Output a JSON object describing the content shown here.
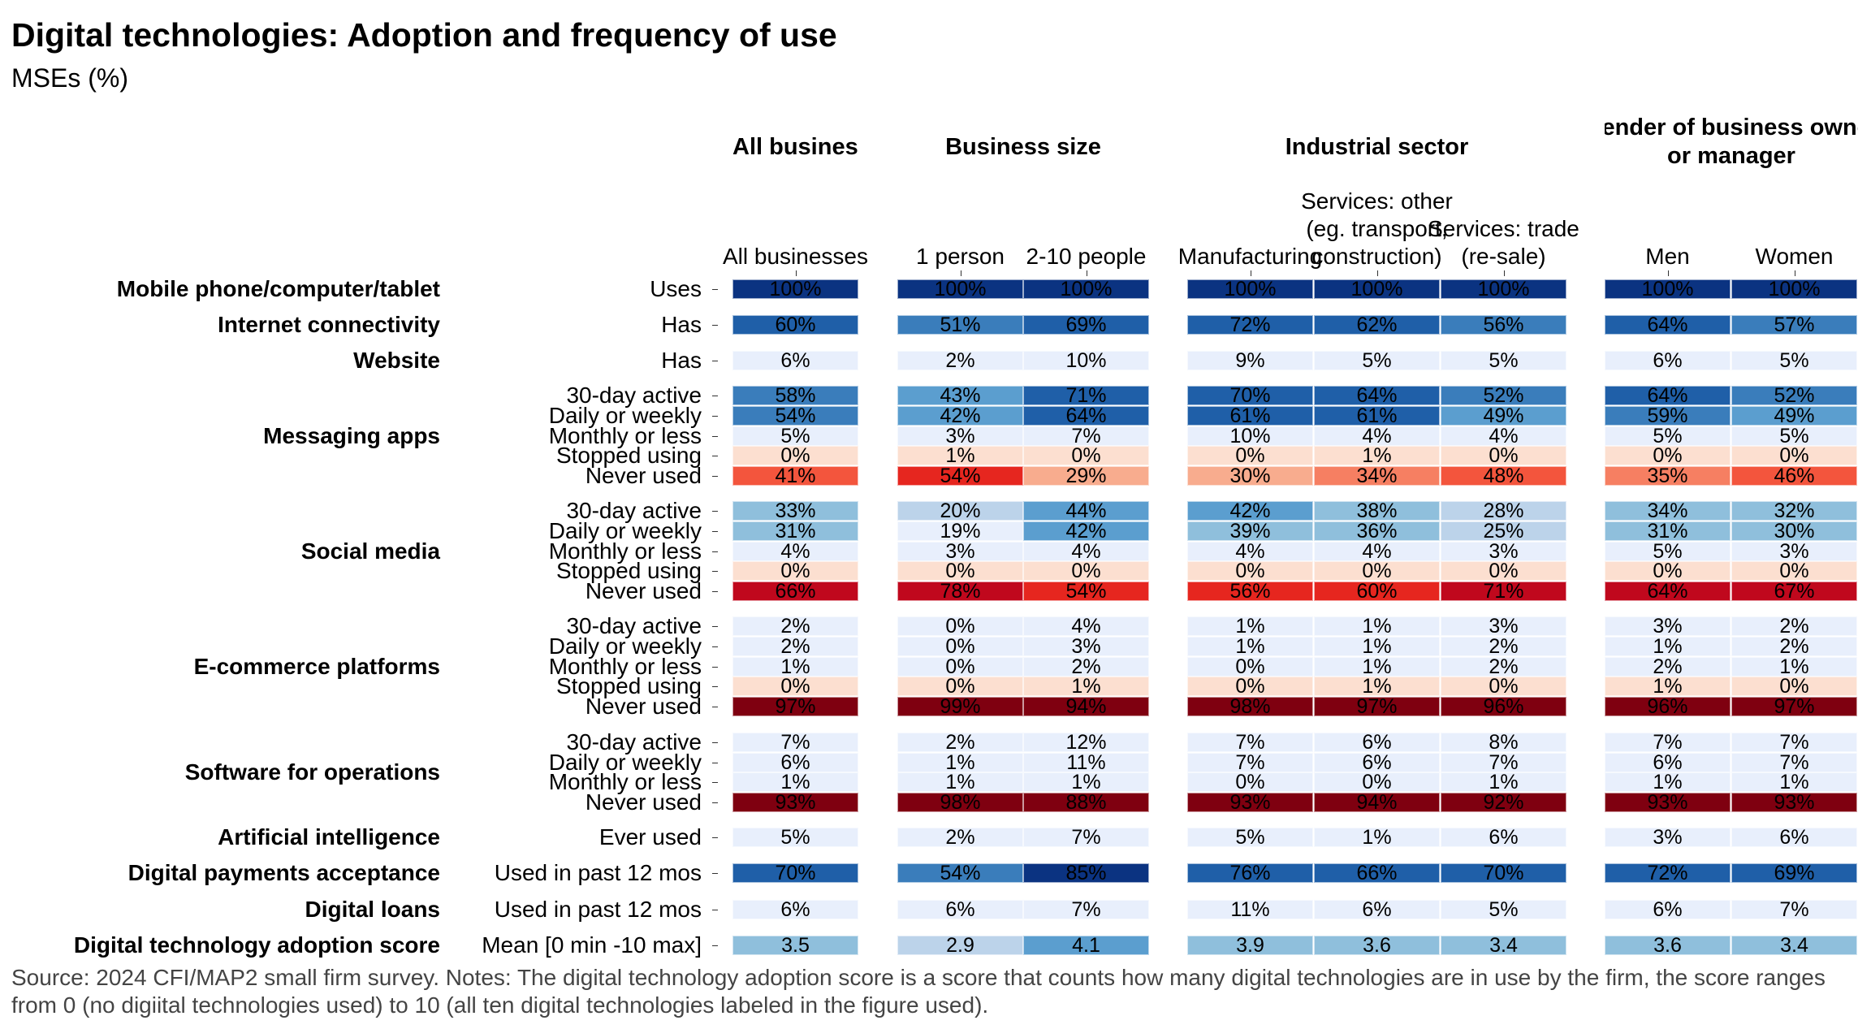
{
  "chart_data": {
    "type": "heatmap",
    "title": "Digital technologies: Adoption and frequency of use",
    "subtitle": "MSEs (%)",
    "panels": [
      {
        "title": "All businesses",
        "columns": [
          "All businesses"
        ]
      },
      {
        "title": "Business size",
        "columns": [
          "1 person",
          "2-10 people"
        ]
      },
      {
        "title": "Industrial sector",
        "columns": [
          "Manufacturing",
          "Services: other\n(eg. transport,\nconstruction)",
          "Services: trade\n(re-sale)"
        ]
      },
      {
        "title": "Gender of business owner or manager",
        "columns": [
          "Men",
          "Women"
        ]
      }
    ],
    "unit": "%",
    "groups": [
      {
        "label": "Mobile phone/computer/tablet",
        "rows": [
          {
            "label": "Uses",
            "values": [
              100,
              100,
              100,
              100,
              100,
              100,
              100,
              100
            ]
          }
        ]
      },
      {
        "label": "Internet connectivity",
        "rows": [
          {
            "label": "Has",
            "values": [
              60,
              51,
              69,
              72,
              62,
              56,
              64,
              57
            ]
          }
        ]
      },
      {
        "label": "Website",
        "rows": [
          {
            "label": "Has",
            "values": [
              6,
              2,
              10,
              9,
              5,
              5,
              6,
              5
            ]
          }
        ]
      },
      {
        "label": "Messaging apps",
        "rows": [
          {
            "label": "30-day active",
            "values": [
              58,
              43,
              71,
              70,
              64,
              52,
              64,
              52
            ]
          },
          {
            "label": "Daily or weekly",
            "values": [
              54,
              42,
              64,
              61,
              61,
              49,
              59,
              49
            ]
          },
          {
            "label": "Monthly or less",
            "values": [
              5,
              3,
              7,
              10,
              4,
              4,
              5,
              5
            ]
          },
          {
            "label": "Stopped using",
            "values": [
              0,
              1,
              0,
              0,
              1,
              0,
              0,
              0
            ]
          },
          {
            "label": "Never used",
            "values": [
              41,
              54,
              29,
              30,
              34,
              48,
              35,
              46
            ]
          }
        ]
      },
      {
        "label": "Social media",
        "rows": [
          {
            "label": "30-day active",
            "values": [
              33,
              20,
              44,
              42,
              38,
              28,
              34,
              32
            ]
          },
          {
            "label": "Daily or weekly",
            "values": [
              31,
              19,
              42,
              39,
              36,
              25,
              31,
              30
            ]
          },
          {
            "label": "Monthly or less",
            "values": [
              4,
              3,
              4,
              4,
              4,
              3,
              5,
              3
            ]
          },
          {
            "label": "Stopped using",
            "values": [
              0,
              0,
              0,
              0,
              0,
              0,
              0,
              0
            ]
          },
          {
            "label": "Never used",
            "values": [
              66,
              78,
              54,
              56,
              60,
              71,
              64,
              67
            ]
          }
        ]
      },
      {
        "label": "E-commerce platforms",
        "rows": [
          {
            "label": "30-day active",
            "values": [
              2,
              0,
              4,
              1,
              1,
              3,
              3,
              2
            ]
          },
          {
            "label": "Daily or weekly",
            "values": [
              2,
              0,
              3,
              1,
              1,
              2,
              1,
              2
            ]
          },
          {
            "label": "Monthly or less",
            "values": [
              1,
              0,
              2,
              0,
              1,
              2,
              2,
              1
            ]
          },
          {
            "label": "Stopped using",
            "values": [
              0,
              0,
              1,
              0,
              1,
              0,
              1,
              0
            ]
          },
          {
            "label": "Never used",
            "values": [
              97,
              99,
              94,
              98,
              97,
              96,
              96,
              97
            ]
          }
        ]
      },
      {
        "label": "Software for operations",
        "rows": [
          {
            "label": "30-day active",
            "values": [
              7,
              2,
              12,
              7,
              6,
              8,
              7,
              7
            ]
          },
          {
            "label": "Daily or weekly",
            "values": [
              6,
              1,
              11,
              7,
              6,
              7,
              6,
              7
            ]
          },
          {
            "label": "Monthly or less",
            "values": [
              1,
              1,
              1,
              0,
              0,
              1,
              1,
              1
            ]
          },
          {
            "label": "Never used",
            "values": [
              93,
              98,
              88,
              93,
              94,
              92,
              93,
              93
            ]
          }
        ]
      },
      {
        "label": "Artificial intelligence",
        "rows": [
          {
            "label": "Ever used",
            "values": [
              5,
              2,
              7,
              5,
              1,
              6,
              3,
              6
            ]
          }
        ]
      },
      {
        "label": "Digital payments acceptance",
        "rows": [
          {
            "label": "Used in past 12 mos",
            "values": [
              70,
              54,
              85,
              76,
              66,
              70,
              72,
              69
            ]
          }
        ]
      },
      {
        "label": "Digital loans",
        "rows": [
          {
            "label": "Used in past 12 mos",
            "values": [
              6,
              6,
              7,
              11,
              6,
              5,
              6,
              7
            ]
          }
        ]
      },
      {
        "label": "Digital technology adoption score",
        "rows": [
          {
            "label": "Mean [0 min -10 max]",
            "unit": "",
            "values": [
              3.5,
              2.9,
              4.1,
              3.9,
              3.6,
              3.4,
              3.6,
              3.4
            ]
          }
        ]
      }
    ],
    "color_scales": {
      "positive": "blues",
      "negative_rows": [
        "Never used",
        "Stopped using"
      ],
      "negative": "reds"
    }
  },
  "footer": "Source: 2024 CFI/MAP2 small firm survey. Notes: The digital technology adoption score is a score that counts how many digital technologies are in use by the firm, the score ranges from 0 (no digiital technologies used) to 10 (all ten digital technologies labeled in the figure used)."
}
